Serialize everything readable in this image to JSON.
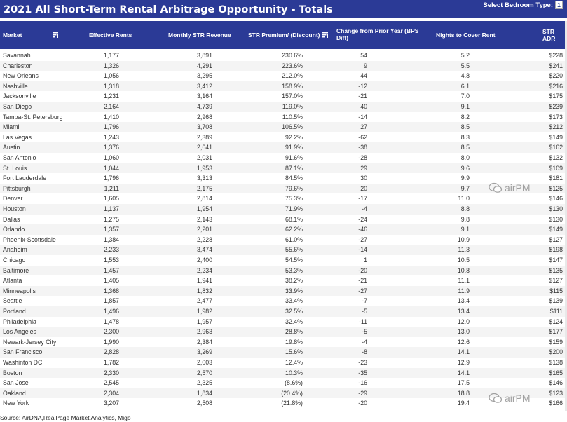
{
  "title": "2021 All Short-Term Rental Arbitrage Opportunity - Totals",
  "bedroom_filter": {
    "label": "Select Bedroom Type:",
    "value": "1"
  },
  "headers": {
    "market": "Market",
    "effective_rents": "Effective Rents",
    "monthly_str_revenue": "Monthly STR Revenue",
    "str_premium": "STR Premium/ (Discount)",
    "change_prior_year": "Change from Prior Year (BPS Diff)",
    "nights_to_cover": "Nights to Cover Rent",
    "str_adr": "STR ADR"
  },
  "chart_data": {
    "type": "table",
    "title": "2021 All Short-Term Rental Arbitrage Opportunity - Totals",
    "columns": [
      "Market",
      "Effective Rents",
      "Monthly STR Revenue",
      "STR Premium/ (Discount)",
      "Change from Prior Year (BPS Diff)",
      "Nights to Cover Rent",
      "STR ADR"
    ],
    "rows": [
      [
        "Savannah",
        "1,177",
        "3,891",
        "230.6%",
        "54",
        "5.2",
        "$228"
      ],
      [
        "Charleston",
        "1,326",
        "4,291",
        "223.6%",
        "9",
        "5.5",
        "$241"
      ],
      [
        "New Orleans",
        "1,056",
        "3,295",
        "212.0%",
        "44",
        "4.8",
        "$220"
      ],
      [
        "Nashville",
        "1,318",
        "3,412",
        "158.9%",
        "-12",
        "6.1",
        "$216"
      ],
      [
        "Jacksonville",
        "1,231",
        "3,164",
        "157.0%",
        "-21",
        "7.0",
        "$175"
      ],
      [
        "San Diego",
        "2,164",
        "4,739",
        "119.0%",
        "40",
        "9.1",
        "$239"
      ],
      [
        "Tampa-St. Petersburg",
        "1,410",
        "2,968",
        "110.5%",
        "-14",
        "8.2",
        "$173"
      ],
      [
        "Miami",
        "1,796",
        "3,708",
        "106.5%",
        "27",
        "8.5",
        "$212"
      ],
      [
        "Las Vegas",
        "1,243",
        "2,389",
        "92.2%",
        "-62",
        "8.3",
        "$149"
      ],
      [
        "Austin",
        "1,376",
        "2,641",
        "91.9%",
        "-38",
        "8.5",
        "$162"
      ],
      [
        "San Antonio",
        "1,060",
        "2,031",
        "91.6%",
        "-28",
        "8.0",
        "$132"
      ],
      [
        "St. Louis",
        "1,044",
        "1,953",
        "87.1%",
        "29",
        "9.6",
        "$109"
      ],
      [
        "Fort Lauderdale",
        "1,796",
        "3,313",
        "84.5%",
        "30",
        "9.9",
        "$181"
      ],
      [
        "Pittsburgh",
        "1,211",
        "2,175",
        "79.6%",
        "20",
        "9.7",
        "$125"
      ],
      [
        "Denver",
        "1,605",
        "2,814",
        "75.3%",
        "-17",
        "11.0",
        "$146"
      ],
      [
        "Houston",
        "1,137",
        "1,954",
        "71.9%",
        "-4",
        "8.8",
        "$130"
      ],
      [
        "Dallas",
        "1,275",
        "2,143",
        "68.1%",
        "-24",
        "9.8",
        "$130"
      ],
      [
        "Orlando",
        "1,357",
        "2,201",
        "62.2%",
        "-46",
        "9.1",
        "$149"
      ],
      [
        "Phoenix-Scottsdale",
        "1,384",
        "2,228",
        "61.0%",
        "-27",
        "10.9",
        "$127"
      ],
      [
        "Anaheim",
        "2,233",
        "3,474",
        "55.6%",
        "-14",
        "11.3",
        "$198"
      ],
      [
        "Chicago",
        "1,553",
        "2,400",
        "54.5%",
        "1",
        "10.5",
        "$147"
      ],
      [
        "Baltimore",
        "1,457",
        "2,234",
        "53.3%",
        "-20",
        "10.8",
        "$135"
      ],
      [
        "Atlanta",
        "1,405",
        "1,941",
        "38.2%",
        "-21",
        "11.1",
        "$127"
      ],
      [
        "Minneapolis",
        "1,368",
        "1,832",
        "33.9%",
        "-27",
        "11.9",
        "$115"
      ],
      [
        "Seattle",
        "1,857",
        "2,477",
        "33.4%",
        "-7",
        "13.4",
        "$139"
      ],
      [
        "Portland",
        "1,496",
        "1,982",
        "32.5%",
        "-5",
        "13.4",
        "$111"
      ],
      [
        "Philadelphia",
        "1,478",
        "1,957",
        "32.4%",
        "-11",
        "12.0",
        "$124"
      ],
      [
        "Los Angeles",
        "2,300",
        "2,963",
        "28.8%",
        "-5",
        "13.0",
        "$177"
      ],
      [
        "Newark-Jersey City",
        "1,990",
        "2,384",
        "19.8%",
        "-4",
        "12.6",
        "$159"
      ],
      [
        "San Francisco",
        "2,828",
        "3,269",
        "15.6%",
        "-8",
        "14.1",
        "$200"
      ],
      [
        "Washinton DC",
        "1,782",
        "2,003",
        "12.4%",
        "-23",
        "12.9",
        "$138"
      ],
      [
        "Boston",
        "2,330",
        "2,570",
        "10.3%",
        "-35",
        "14.1",
        "$165"
      ],
      [
        "San Jose",
        "2,545",
        "2,325",
        "(8.6%)",
        "-16",
        "17.5",
        "$146"
      ],
      [
        "Oakland",
        "2,304",
        "1,834",
        "(20.4%)",
        "-29",
        "18.8",
        "$123"
      ],
      [
        "New York",
        "3,207",
        "2,508",
        "(21.8%)",
        "-20",
        "19.4",
        "$166"
      ]
    ]
  },
  "source": "Source: AirDNA,RealPage Market Analytics, Migo",
  "watermark": "airPM",
  "colors": {
    "header_bg": "#2b3a96",
    "row_alt": "#f4f4f4",
    "text": "#333333"
  }
}
